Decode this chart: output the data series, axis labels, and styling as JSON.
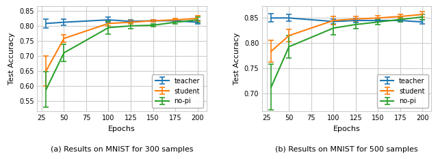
{
  "plot_a": {
    "caption": "(a) Results on MNIST for 300 samples",
    "epochs": [
      30,
      50,
      100,
      125,
      150,
      175,
      200
    ],
    "teacher": {
      "mean": [
        0.808,
        0.812,
        0.82,
        0.815,
        0.817,
        0.817,
        0.812
      ],
      "err": [
        0.014,
        0.01,
        0.01,
        0.005,
        0.004,
        0.004,
        0.005
      ]
    },
    "student": {
      "mean": [
        0.65,
        0.758,
        0.808,
        0.812,
        0.817,
        0.82,
        0.825
      ],
      "err": [
        0.05,
        0.013,
        0.008,
        0.005,
        0.004,
        0.004,
        0.01
      ]
    },
    "no_pi": {
      "mean": [
        0.588,
        0.71,
        0.794,
        0.8,
        0.802,
        0.812,
        0.82
      ],
      "err": [
        0.06,
        0.028,
        0.022,
        0.01,
        0.005,
        0.005,
        0.01
      ]
    },
    "ylim": [
      0.515,
      0.865
    ],
    "yticks": [
      0.55,
      0.6,
      0.65,
      0.7,
      0.75,
      0.8,
      0.85
    ]
  },
  "plot_b": {
    "caption": "(b) Results on MNIST for 500 samples",
    "epochs": [
      30,
      50,
      100,
      125,
      150,
      175,
      200
    ],
    "teacher": {
      "mean": [
        0.85,
        0.85,
        0.843,
        0.845,
        0.845,
        0.845,
        0.842
      ],
      "err": [
        0.008,
        0.007,
        0.005,
        0.004,
        0.003,
        0.003,
        0.004
      ]
    },
    "student": {
      "mean": [
        0.784,
        0.815,
        0.845,
        0.848,
        0.85,
        0.853,
        0.857
      ],
      "err": [
        0.022,
        0.012,
        0.008,
        0.005,
        0.004,
        0.004,
        0.005
      ]
    },
    "no_pi": {
      "mean": [
        0.713,
        0.793,
        0.83,
        0.837,
        0.842,
        0.847,
        0.852
      ],
      "err": [
        0.045,
        0.022,
        0.013,
        0.008,
        0.005,
        0.005,
        0.005
      ]
    },
    "ylim": [
      0.665,
      0.873
    ],
    "yticks": [
      0.7,
      0.75,
      0.8,
      0.85
    ]
  },
  "colors": {
    "teacher": "#1f77b4",
    "student": "#ff7f0e",
    "no_pi": "#2ca02c"
  },
  "xlabel": "Epochs",
  "ylabel": "Test Accuracy",
  "xticks": [
    25,
    50,
    75,
    100,
    125,
    150,
    175,
    200
  ]
}
